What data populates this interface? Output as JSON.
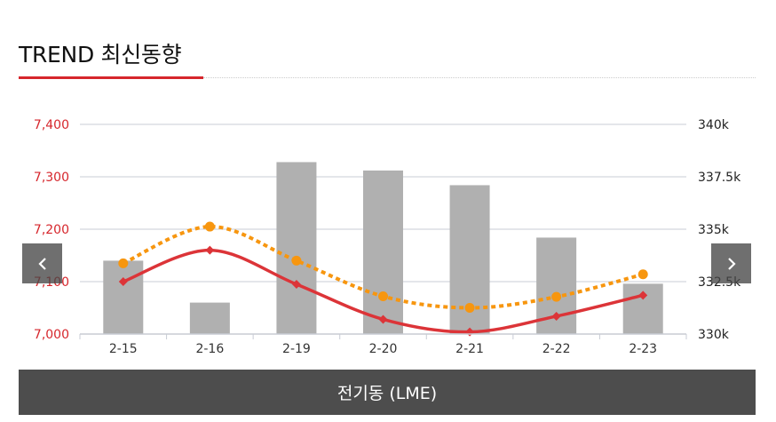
{
  "header": {
    "title": "TREND 최신동향"
  },
  "footer": {
    "label": "전기동 (LME)"
  },
  "colors": {
    "bar": "#b0b0b0",
    "line_red": "#dc3438",
    "line_orange": "#f7960f",
    "left_axis_text": "#d6262c",
    "right_axis_text": "#222222",
    "grid": "#c8ccd4"
  },
  "icons": {
    "prev": "chevron-left-icon",
    "next": "chevron-right-icon"
  },
  "chart_data": {
    "type": "bar",
    "categories": [
      "2-15",
      "2-16",
      "2-19",
      "2-20",
      "2-21",
      "2-22",
      "2-23"
    ],
    "y_left": {
      "ticks": [
        "7,000",
        "7,100",
        "7,200",
        "7,300",
        "7,400"
      ],
      "range": [
        7000,
        7400
      ]
    },
    "y_right": {
      "ticks": [
        "330k",
        "332.5k",
        "335k",
        "337.5k",
        "340k"
      ],
      "range": [
        330000,
        340000
      ]
    },
    "grid": true,
    "series": [
      {
        "type": "bar",
        "axis": "right",
        "values": [
          333500,
          331500,
          338200,
          337800,
          337100,
          334600,
          332400
        ]
      },
      {
        "type": "line",
        "style": "solid",
        "axis": "left",
        "values": [
          7100,
          7160,
          7095,
          7028,
          7004,
          7034,
          7074
        ]
      },
      {
        "type": "line",
        "style": "dotted",
        "axis": "left",
        "values": [
          7135,
          7205,
          7140,
          7072,
          7050,
          7071,
          7114
        ]
      }
    ]
  }
}
